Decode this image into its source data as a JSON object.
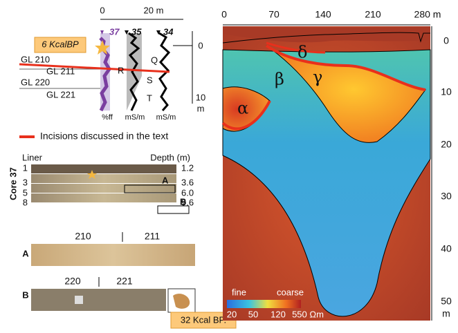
{
  "log": {
    "top_ticks": [
      "0",
      "20 m"
    ],
    "core_ids": [
      "37",
      "35",
      "34"
    ],
    "age_label": "6 KcalBP",
    "gl_labels": [
      "GL 210",
      "GL 211",
      "GL 220",
      "GL 221"
    ],
    "units": [
      "Q",
      "R",
      "S",
      "T"
    ],
    "bottom_units": [
      "%ff",
      "mS/m",
      "mS/m"
    ],
    "depth_ticks": [
      "0",
      "10"
    ],
    "depth_unit": "m"
  },
  "legend": {
    "label": "Incisions discussed in the text"
  },
  "core": {
    "liner_label": "Liner",
    "depth_label": "Depth (m)",
    "core_label": "Core 37",
    "sections": [
      "1",
      "3",
      "5",
      "8"
    ],
    "depths": [
      "1.2",
      "3.6",
      "6.0",
      "9.6"
    ],
    "box_labels": [
      "A",
      "B"
    ]
  },
  "detail_a": {
    "label": "A",
    "markers": [
      "210",
      "211"
    ]
  },
  "detail_b": {
    "label": "B",
    "markers": [
      "220",
      "221"
    ],
    "age_label": "32 Kcal BP."
  },
  "section": {
    "x_ticks": [
      "0",
      "70",
      "140",
      "210",
      "280 m"
    ],
    "y_ticks": [
      "0",
      "10",
      "20",
      "30",
      "40",
      "50"
    ],
    "y_unit": "m",
    "units": [
      "α",
      "β",
      "γ",
      "δ"
    ],
    "colorbar": {
      "low_label": "fine",
      "high_label": "coarse",
      "ticks": [
        "20",
        "50",
        "120",
        "550 Ωm"
      ]
    }
  }
}
